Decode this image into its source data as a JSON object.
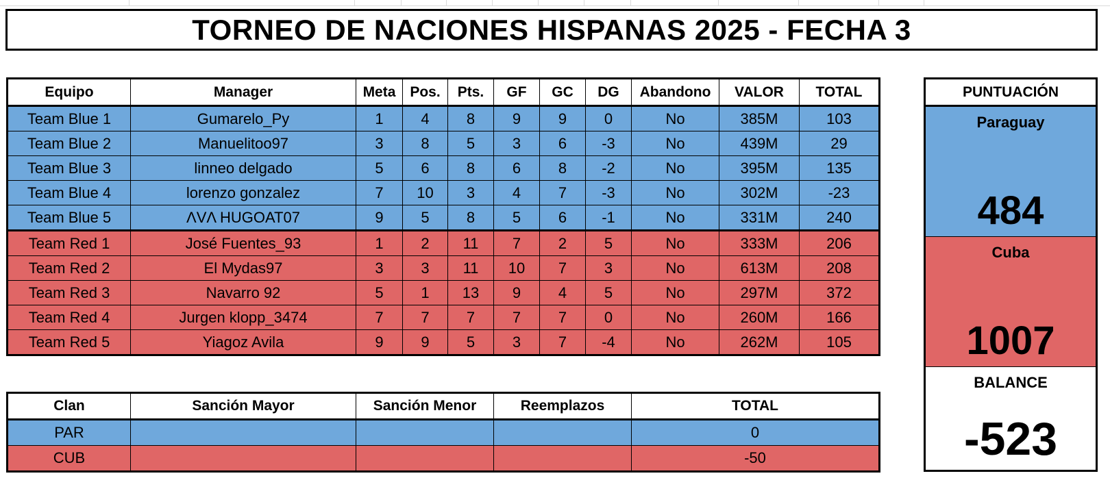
{
  "title": "TORNEO DE NACIONES HISPANAS 2025 - FECHA 3",
  "colors": {
    "blue": "#6fa8dc",
    "red": "#e06666"
  },
  "standings": {
    "headers": [
      "Equipo",
      "Manager",
      "Meta",
      "Pos.",
      "Pts.",
      "GF",
      "GC",
      "DG",
      "Abandono",
      "VALOR",
      "TOTAL"
    ],
    "rows": [
      {
        "team": "blue",
        "cells": [
          "Team Blue 1",
          "Gumarelo_Py",
          "1",
          "4",
          "8",
          "9",
          "9",
          "0",
          "No",
          "385M",
          "103"
        ]
      },
      {
        "team": "blue",
        "cells": [
          "Team Blue 2",
          "Manuelitoo97",
          "3",
          "8",
          "5",
          "3",
          "6",
          "-3",
          "No",
          "439M",
          "29"
        ]
      },
      {
        "team": "blue",
        "cells": [
          "Team Blue 3",
          "linneo delgado",
          "5",
          "6",
          "8",
          "6",
          "8",
          "-2",
          "No",
          "395M",
          "135"
        ]
      },
      {
        "team": "blue",
        "cells": [
          "Team Blue 4",
          "lorenzo gonzalez",
          "7",
          "10",
          "3",
          "4",
          "7",
          "-3",
          "No",
          "302M",
          "-23"
        ]
      },
      {
        "team": "blue",
        "cells": [
          "Team Blue 5",
          "ΛVΛ HUGOAT07",
          "9",
          "5",
          "8",
          "5",
          "6",
          "-1",
          "No",
          "331M",
          "240"
        ]
      },
      {
        "team": "red",
        "cells": [
          "Team Red 1",
          "José Fuentes_93",
          "1",
          "2",
          "11",
          "7",
          "2",
          "5",
          "No",
          "333M",
          "206"
        ]
      },
      {
        "team": "red",
        "cells": [
          "Team Red 2",
          "El Mydas97",
          "3",
          "3",
          "11",
          "10",
          "7",
          "3",
          "No",
          "613M",
          "208"
        ]
      },
      {
        "team": "red",
        "cells": [
          "Team Red 3",
          "Navarro 92",
          "5",
          "1",
          "13",
          "9",
          "4",
          "5",
          "No",
          "297M",
          "372"
        ]
      },
      {
        "team": "red",
        "cells": [
          "Team Red 4",
          "Jurgen klopp_3474",
          "7",
          "7",
          "7",
          "7",
          "7",
          "0",
          "No",
          "260M",
          "166"
        ]
      },
      {
        "team": "red",
        "cells": [
          "Team Red 5",
          "Yiagoz Avila",
          "9",
          "9",
          "5",
          "3",
          "7",
          "-4",
          "No",
          "262M",
          "105"
        ]
      }
    ]
  },
  "penalties": {
    "headers": [
      "Clan",
      "Sanción Mayor",
      "Sanción Menor",
      "Reemplazos",
      "TOTAL"
    ],
    "rows": [
      {
        "team": "blue",
        "cells": [
          "PAR",
          "",
          "",
          "",
          "0"
        ]
      },
      {
        "team": "red",
        "cells": [
          "CUB",
          "",
          "",
          "",
          "-50"
        ]
      }
    ]
  },
  "score": {
    "header": "PUNTUACIÓN",
    "teams": [
      {
        "name": "Paraguay",
        "points": "484"
      },
      {
        "name": "Cuba",
        "points": "1007"
      }
    ],
    "balance_label": "BALANCE",
    "balance_value": "-523"
  }
}
